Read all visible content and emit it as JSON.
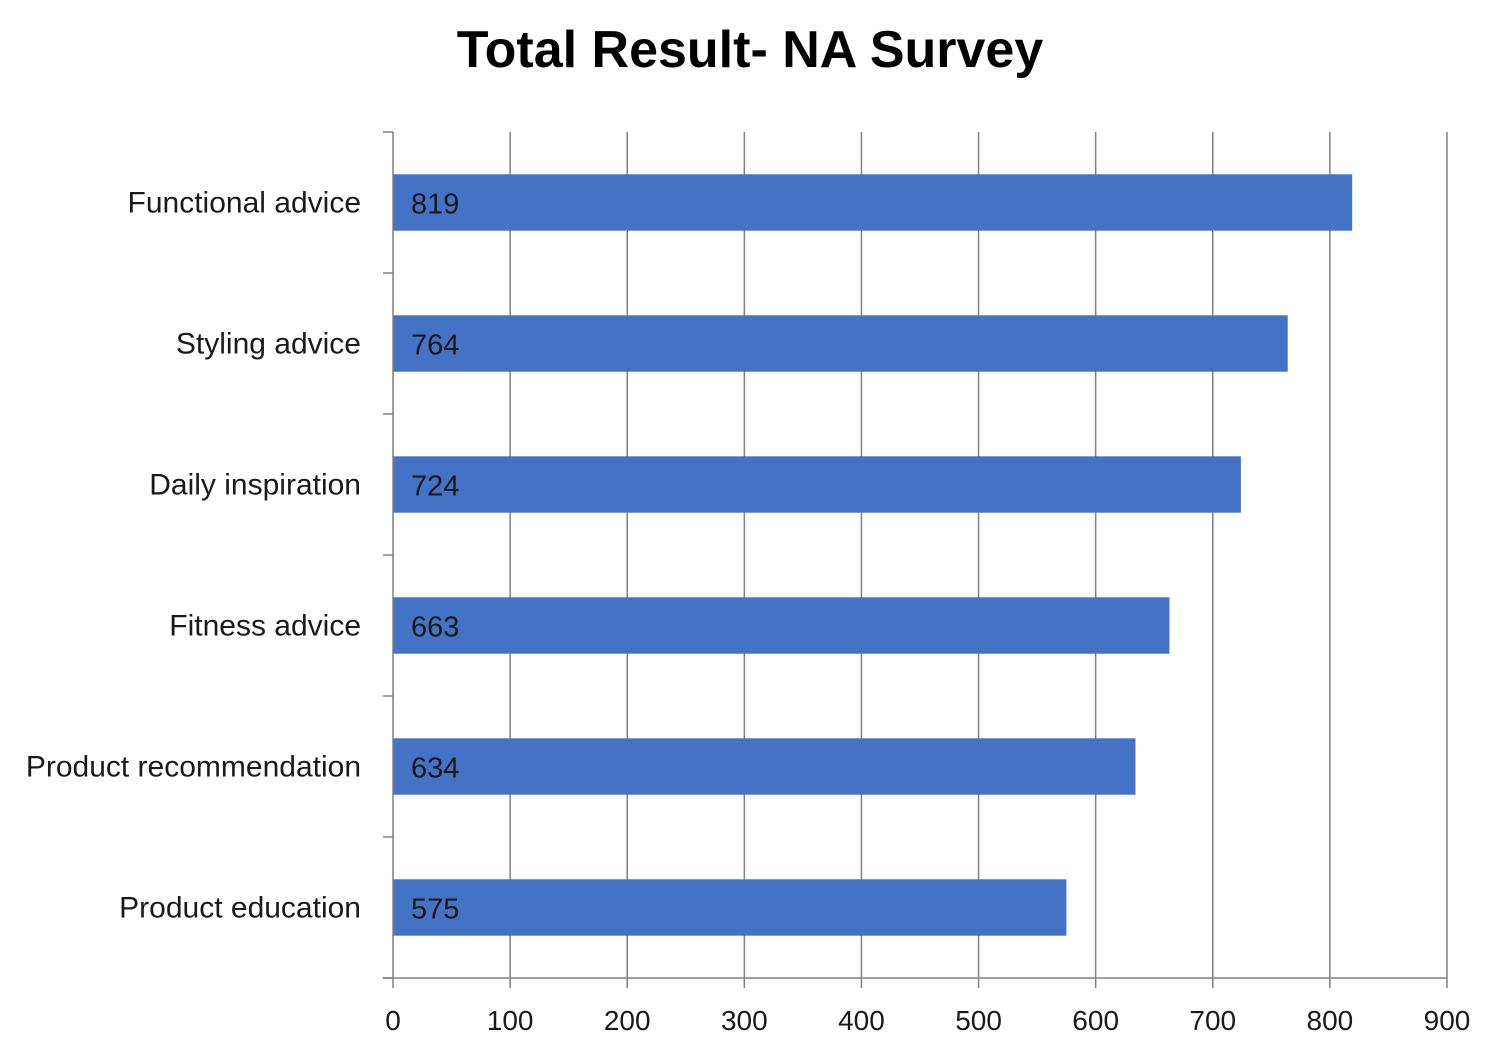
{
  "chart_data": {
    "type": "bar",
    "orientation": "horizontal",
    "title": "Total Result- NA Survey",
    "xlabel": "",
    "ylabel": "",
    "categories": [
      "Functional advice",
      "Styling advice",
      "Daily inspiration",
      "Fitness advice",
      "Product recommendation",
      "Product education"
    ],
    "values": [
      819,
      764,
      724,
      663,
      634,
      575
    ],
    "xlim": [
      0,
      900
    ],
    "xticks": [
      "0",
      "100",
      "200",
      "300",
      "400",
      "500",
      "600",
      "700",
      "800",
      "900"
    ],
    "grid": "vertical",
    "legend": "none",
    "data_labels": "inside-base",
    "colors": {
      "bar": "#4472C4",
      "grid": "#808080",
      "axis": "#808080"
    }
  }
}
